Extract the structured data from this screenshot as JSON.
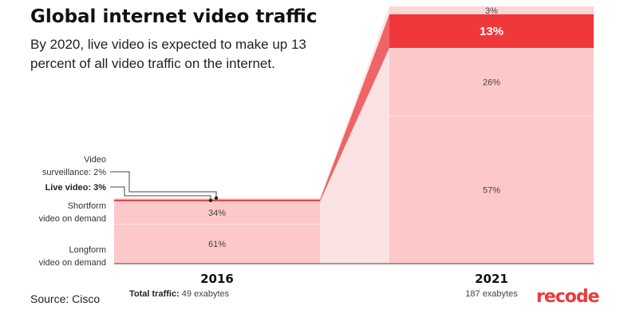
{
  "header": {
    "title": "Global internet video traffic",
    "subtitle": "By 2020, live video is expected to make up 13 percent of all video traffic on the internet."
  },
  "footer": {
    "source": "Source: Cisco",
    "logo_text": "recode"
  },
  "colors": {
    "light_segment": "#fdc8c8",
    "live_video": "#f0373a",
    "live_video_left": "#e8484a",
    "surveillance": "#fdd5d5",
    "connector_light": "#fbe3e3",
    "connector_dark": "#ef6466",
    "axis": "#444444"
  },
  "chart_data": {
    "type": "bar",
    "stacked": true,
    "title": "Global internet video traffic",
    "categories": [
      "2016",
      "2021"
    ],
    "totals": [
      {
        "prefix": "Total traffic:",
        "value": 49,
        "unit": "exabytes",
        "label": "49 exabytes"
      },
      {
        "prefix": "",
        "value": 187,
        "unit": "exabytes",
        "label": "187 exabytes"
      }
    ],
    "series": [
      {
        "name": "Longform video on demand",
        "annotation": [
          "Longform",
          "video on demand"
        ],
        "values": [
          61,
          57
        ],
        "labels": [
          "61%",
          "57%"
        ]
      },
      {
        "name": "Shortform video on demand",
        "annotation": [
          "Shortform",
          "video on demand"
        ],
        "values": [
          34,
          26
        ],
        "labels": [
          "34%",
          "26%"
        ]
      },
      {
        "name": "Live video",
        "annotation": [
          "Live video: 3%"
        ],
        "values": [
          3,
          13
        ],
        "labels": [
          "",
          "13%"
        ]
      },
      {
        "name": "Video surveillance",
        "annotation": [
          "Video",
          "surveillance: 2%"
        ],
        "values": [
          2,
          3
        ],
        "labels": [
          "",
          "3%"
        ]
      }
    ]
  }
}
